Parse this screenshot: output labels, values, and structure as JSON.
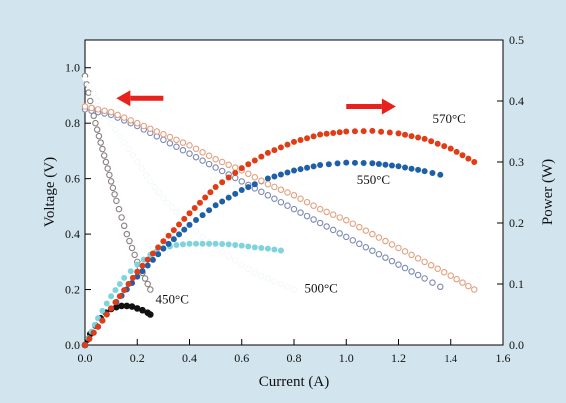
{
  "colors": {
    "panel_bg": "#d2e4ed",
    "plot_bg": "#ffffff",
    "series_450": "#8a8080",
    "series_500": "#ffffff",
    "series_550": "#7d8ab4",
    "series_570": "#e2a07e",
    "power_450": "#111111",
    "power_500": "#7fd3dc",
    "power_550": "#1f5fa8",
    "power_570": "#e03c16",
    "arrow": "#e8211c"
  },
  "chart_data": {
    "type": "scatter",
    "title": "",
    "xlabel": "Current (A)",
    "ylabel": "Voltage  (V)",
    "y2label": "Power  (W)",
    "xlim": [
      0.0,
      1.6
    ],
    "ylim": [
      0.0,
      1.1
    ],
    "y2lim": [
      0.0,
      0.5
    ],
    "xticks": [
      "0.0",
      "0.2",
      "0.4",
      "0.6",
      "0.8",
      "1.0",
      "1.2",
      "1.4",
      "1.6"
    ],
    "yticks": [
      "0.0",
      "0.2",
      "0.4",
      "0.6",
      "0.8",
      "1.0"
    ],
    "y2ticks": [
      "0.0",
      "0.1",
      "0.2",
      "0.3",
      "0.4",
      "0.5"
    ],
    "grid": false,
    "legend": "none",
    "annotations": [
      {
        "text": "450°C",
        "x": 0.27,
        "y": 0.15
      },
      {
        "text": "500°C",
        "x": 0.84,
        "y": 0.19
      },
      {
        "text": "550°C",
        "x": 1.04,
        "y": 0.58
      },
      {
        "text": "570°C",
        "x": 1.33,
        "y": 0.8
      }
    ],
    "arrows": [
      {
        "direction": "left",
        "from_x": 0.3,
        "to_x": 0.12,
        "y": 0.89
      },
      {
        "direction": "right",
        "from_x": 1.0,
        "to_x": 1.19,
        "y": 0.86
      }
    ],
    "series": [
      {
        "name": "450°C",
        "kind": "voltage",
        "axis": "left",
        "marker": "hollow",
        "x": [
          0.0,
          0.02,
          0.04,
          0.06,
          0.08,
          0.1,
          0.12,
          0.14,
          0.16,
          0.18,
          0.2,
          0.22,
          0.24,
          0.25
        ],
        "y": [
          0.97,
          0.88,
          0.8,
          0.73,
          0.66,
          0.59,
          0.52,
          0.46,
          0.4,
          0.35,
          0.3,
          0.26,
          0.22,
          0.2
        ]
      },
      {
        "name": "450°C",
        "kind": "power",
        "axis": "right",
        "marker": "filled",
        "x": [
          0.0,
          0.02,
          0.04,
          0.06,
          0.08,
          0.1,
          0.12,
          0.14,
          0.16,
          0.18,
          0.2,
          0.22,
          0.24,
          0.25
        ],
        "y": [
          0.0,
          0.018,
          0.032,
          0.044,
          0.053,
          0.059,
          0.062,
          0.064,
          0.064,
          0.063,
          0.06,
          0.057,
          0.053,
          0.05
        ]
      },
      {
        "name": "500°C",
        "kind": "voltage",
        "axis": "left",
        "marker": "filled",
        "x": [
          0.0,
          0.05,
          0.1,
          0.15,
          0.2,
          0.25,
          0.3,
          0.35,
          0.4,
          0.45,
          0.5,
          0.55,
          0.6,
          0.65,
          0.7,
          0.75,
          0.8
        ],
        "y": [
          0.96,
          0.88,
          0.8,
          0.73,
          0.66,
          0.59,
          0.53,
          0.48,
          0.43,
          0.39,
          0.35,
          0.32,
          0.29,
          0.26,
          0.24,
          0.22,
          0.2
        ]
      },
      {
        "name": "500°C",
        "kind": "power",
        "axis": "right",
        "marker": "filled",
        "x": [
          0.0,
          0.05,
          0.1,
          0.15,
          0.2,
          0.25,
          0.3,
          0.35,
          0.4,
          0.45,
          0.5,
          0.55,
          0.6,
          0.65,
          0.7,
          0.75
        ],
        "y": [
          0.0,
          0.044,
          0.08,
          0.11,
          0.132,
          0.148,
          0.159,
          0.164,
          0.166,
          0.166,
          0.166,
          0.165,
          0.163,
          0.16,
          0.158,
          0.155
        ]
      },
      {
        "name": "550°C",
        "kind": "voltage",
        "axis": "left",
        "marker": "hollow",
        "x": [
          0.0,
          0.1,
          0.2,
          0.3,
          0.4,
          0.5,
          0.6,
          0.7,
          0.8,
          0.9,
          1.0,
          1.1,
          1.2,
          1.3,
          1.36
        ],
        "y": [
          0.85,
          0.83,
          0.79,
          0.74,
          0.69,
          0.64,
          0.59,
          0.54,
          0.49,
          0.44,
          0.39,
          0.34,
          0.29,
          0.24,
          0.21
        ]
      },
      {
        "name": "550°C",
        "kind": "power",
        "axis": "right",
        "marker": "filled",
        "x": [
          0.0,
          0.1,
          0.2,
          0.3,
          0.4,
          0.5,
          0.6,
          0.7,
          0.8,
          0.9,
          1.0,
          1.1,
          1.2,
          1.3,
          1.36
        ],
        "y": [
          0.0,
          0.06,
          0.112,
          0.158,
          0.197,
          0.229,
          0.254,
          0.273,
          0.286,
          0.295,
          0.299,
          0.298,
          0.293,
          0.285,
          0.279
        ]
      },
      {
        "name": "570°C",
        "kind": "voltage",
        "axis": "left",
        "marker": "hollow",
        "x": [
          0.0,
          0.1,
          0.2,
          0.3,
          0.4,
          0.5,
          0.6,
          0.7,
          0.8,
          0.9,
          1.0,
          1.1,
          1.2,
          1.3,
          1.4,
          1.49
        ],
        "y": [
          0.86,
          0.84,
          0.8,
          0.76,
          0.72,
          0.67,
          0.63,
          0.58,
          0.54,
          0.49,
          0.45,
          0.4,
          0.35,
          0.3,
          0.25,
          0.2
        ]
      },
      {
        "name": "570°C",
        "kind": "power",
        "axis": "right",
        "marker": "filled",
        "x": [
          0.0,
          0.1,
          0.2,
          0.3,
          0.4,
          0.5,
          0.6,
          0.7,
          0.8,
          0.9,
          1.0,
          1.1,
          1.2,
          1.3,
          1.4,
          1.49
        ],
        "y": [
          0.0,
          0.06,
          0.12,
          0.17,
          0.216,
          0.259,
          0.29,
          0.315,
          0.333,
          0.345,
          0.35,
          0.351,
          0.347,
          0.338,
          0.322,
          0.3
        ]
      }
    ]
  }
}
